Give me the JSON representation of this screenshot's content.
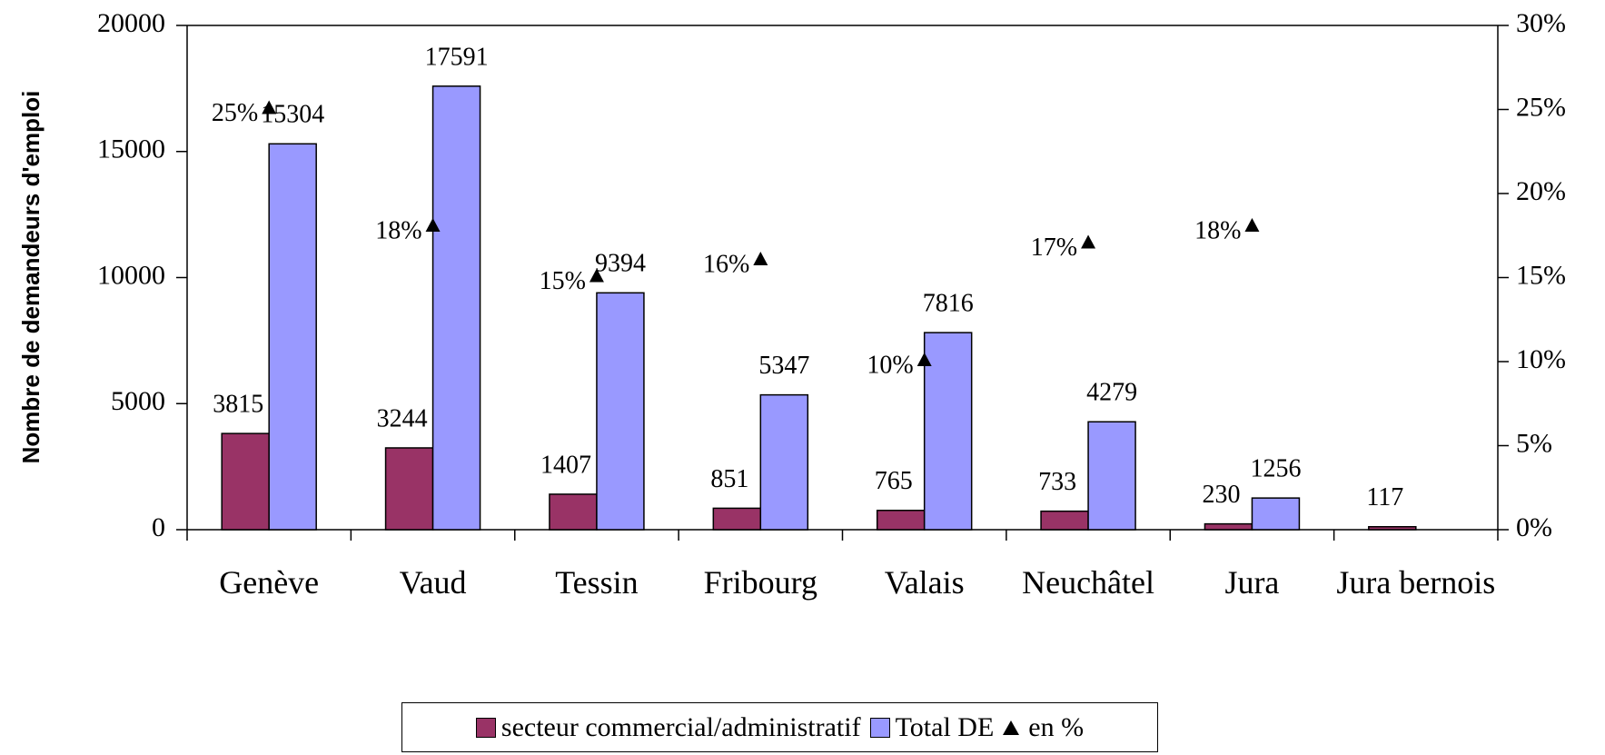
{
  "chart_data": {
    "type": "bar",
    "y_label": "Nombre de demandeurs d'emploi",
    "categories": [
      "Genève",
      "Vaud",
      "Tessin",
      "Fribourg",
      "Valais",
      "Neuchâtel",
      "Jura",
      "Jura bernois"
    ],
    "series": [
      {
        "name": "secteur commercial/administratif",
        "color": "#993366",
        "values": [
          3815,
          3244,
          1407,
          851,
          765,
          733,
          230,
          117
        ]
      },
      {
        "name": "Total DE",
        "color": "#9999ff",
        "values": [
          15304,
          17591,
          9394,
          5347,
          7816,
          4279,
          1256,
          null
        ]
      },
      {
        "name": "en %",
        "color": "#000000",
        "type": "scatter",
        "axis": "y2",
        "values": [
          25,
          18,
          15,
          16,
          10,
          17,
          18,
          null
        ],
        "value_labels": [
          "25%",
          "18%",
          "15%",
          "16%",
          "10%",
          "17%",
          "18%",
          null
        ]
      }
    ],
    "ylim": [
      0,
      20000
    ],
    "yticks": [
      0,
      5000,
      10000,
      15000,
      20000
    ],
    "y2lim": [
      0,
      30
    ],
    "y2ticks": [
      {
        "value": 0,
        "label": "0%"
      },
      {
        "value": 5,
        "label": "5%"
      },
      {
        "value": 10,
        "label": "10%"
      },
      {
        "value": 15,
        "label": "15%"
      },
      {
        "value": 20,
        "label": "20%"
      },
      {
        "value": 25,
        "label": "25%"
      },
      {
        "value": 30,
        "label": "30%"
      }
    ],
    "legend": "bottom"
  }
}
